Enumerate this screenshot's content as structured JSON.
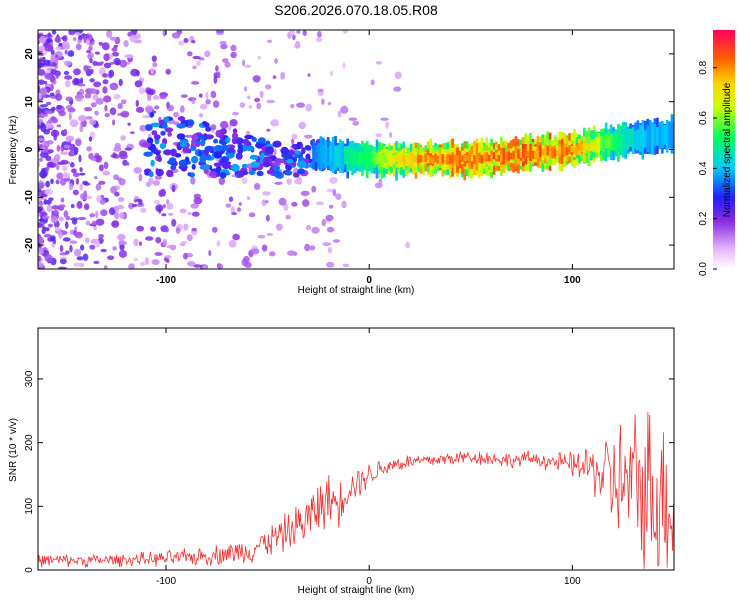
{
  "title": "S206.2026.070.18.05.R08",
  "chart_data": [
    {
      "type": "heatmap",
      "xlabel": "Height of straight line (km)",
      "ylabel": "Frequency (Hz)",
      "xlim": [
        -163,
        150
      ],
      "ylim": [
        -25,
        25
      ],
      "xticks": [
        -100,
        0,
        100
      ],
      "xtick_labels": [
        "-100",
        "0",
        "100"
      ],
      "yticks": [
        -20,
        -10,
        0,
        10,
        20
      ],
      "ytick_labels": [
        "-20",
        "-10",
        "0",
        "10",
        "20"
      ],
      "ridge": {
        "x": [
          -100,
          -80,
          -60,
          -40,
          -25,
          0,
          25,
          50,
          75,
          100,
          125,
          150
        ],
        "y": [
          1,
          0,
          -1,
          -3,
          -1,
          -2,
          -2,
          -2,
          -1,
          0,
          2,
          3
        ],
        "peak_amplitude": [
          0.25,
          0.25,
          0.25,
          0.25,
          0.4,
          0.6,
          0.9,
          0.9,
          0.95,
          0.9,
          0.5,
          0.4
        ]
      },
      "colorbar": {
        "label": "Normalized spectral amplitude",
        "range": [
          0.0,
          0.95
        ],
        "ticks": [
          0.0,
          0.2,
          0.4,
          0.6,
          0.8
        ],
        "tick_labels": [
          "0.0",
          "0.2",
          "0.4",
          "0.6",
          "0.8"
        ]
      }
    },
    {
      "type": "line",
      "xlabel": "Height of straight line (km)",
      "ylabel": "SNR (10 * v/v)",
      "xlim": [
        -163,
        150
      ],
      "ylim": [
        0,
        380
      ],
      "xticks": [
        -100,
        0,
        100
      ],
      "xtick_labels": [
        "-100",
        "0",
        "100"
      ],
      "yticks": [
        0,
        100,
        200,
        300
      ],
      "ytick_labels": [
        "0",
        "100",
        "200",
        "300"
      ],
      "series": [
        {
          "name": "SNR",
          "color": "#ee3333",
          "x": [
            -163,
            -140,
            -120,
            -100,
            -80,
            -60,
            -50,
            -40,
            -30,
            -25,
            -20,
            -15,
            -10,
            0,
            10,
            20,
            30,
            40,
            50,
            60,
            70,
            80,
            90,
            100,
            110,
            115,
            120,
            130,
            140,
            150
          ],
          "mean": [
            15,
            15,
            16,
            18,
            22,
            30,
            45,
            60,
            80,
            100,
            110,
            105,
            130,
            150,
            165,
            170,
            172,
            175,
            178,
            175,
            172,
            175,
            170,
            165,
            160,
            150,
            140,
            130,
            125,
            100
          ],
          "spread": [
            10,
            10,
            10,
            12,
            15,
            20,
            25,
            30,
            40,
            45,
            40,
            35,
            30,
            20,
            15,
            12,
            12,
            12,
            12,
            12,
            12,
            12,
            15,
            20,
            40,
            60,
            90,
            120,
            150,
            110
          ]
        }
      ]
    }
  ]
}
